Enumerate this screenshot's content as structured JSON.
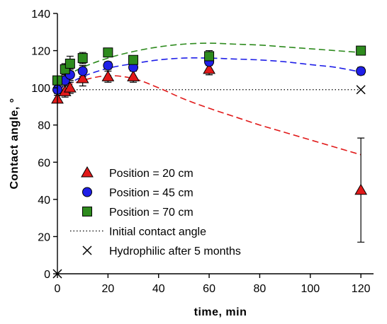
{
  "chart_data": {
    "type": "scatter",
    "xlabel": "time, min",
    "ylabel": "Contact angle, °",
    "xlim": [
      0,
      125
    ],
    "ylim": [
      0,
      140
    ],
    "x_ticks": [
      0,
      20,
      40,
      60,
      80,
      100,
      120
    ],
    "y_ticks": [
      0,
      20,
      40,
      60,
      80,
      100,
      120,
      140
    ],
    "grid": false,
    "legend_position": "bottom-left",
    "series": [
      {
        "name": "Position = 20 cm",
        "marker": "triangle",
        "color": "#e11919",
        "points": [
          {
            "x": 0,
            "y": 94,
            "err": 2
          },
          {
            "x": 3,
            "y": 98,
            "err": 3
          },
          {
            "x": 5,
            "y": 100,
            "err": 3
          },
          {
            "x": 10,
            "y": 105,
            "err": 4
          },
          {
            "x": 20,
            "y": 106,
            "err": 3
          },
          {
            "x": 30,
            "y": 106,
            "err": 3
          },
          {
            "x": 60,
            "y": 110,
            "err": 3
          },
          {
            "x": 120,
            "y": 45,
            "err": 28
          }
        ],
        "fit": {
          "color": "#e11919",
          "x": [
            0,
            10,
            20,
            30,
            40,
            50,
            60,
            70,
            80,
            90,
            100,
            110,
            120
          ],
          "y": [
            99,
            104,
            106.5,
            105,
            100,
            94,
            89,
            84.5,
            80,
            76,
            72,
            68,
            64
          ]
        }
      },
      {
        "name": "Position = 45 cm",
        "marker": "circle",
        "color": "#1f1fe8",
        "points": [
          {
            "x": 0,
            "y": 99,
            "err": 2
          },
          {
            "x": 3,
            "y": 104,
            "err": 3
          },
          {
            "x": 5,
            "y": 107,
            "err": 3
          },
          {
            "x": 10,
            "y": 109,
            "err": 3
          },
          {
            "x": 20,
            "y": 112,
            "err": 2
          },
          {
            "x": 30,
            "y": 111,
            "err": 2
          },
          {
            "x": 60,
            "y": 114,
            "err": 2
          },
          {
            "x": 120,
            "y": 109,
            "err": 2
          }
        ],
        "fit": {
          "color": "#1f1fe8",
          "x": [
            0,
            10,
            20,
            30,
            40,
            50,
            60,
            70,
            80,
            90,
            100,
            110,
            120
          ],
          "y": [
            99,
            106,
            110.5,
            113,
            115,
            116,
            116,
            115.5,
            115,
            114,
            112.5,
            111,
            108.5
          ]
        }
      },
      {
        "name": "Position = 70 cm",
        "marker": "square",
        "color": "#2e8b1e",
        "points": [
          {
            "x": 0,
            "y": 104,
            "err": 2
          },
          {
            "x": 3,
            "y": 110,
            "err": 3
          },
          {
            "x": 5,
            "y": 113,
            "err": 4
          },
          {
            "x": 10,
            "y": 116,
            "err": 3
          },
          {
            "x": 20,
            "y": 119,
            "err": 2
          },
          {
            "x": 30,
            "y": 115,
            "err": 2
          },
          {
            "x": 60,
            "y": 117,
            "err": 3
          },
          {
            "x": 120,
            "y": 120,
            "err": 2
          }
        ],
        "fit": {
          "color": "#2e8b1e",
          "x": [
            0,
            10,
            20,
            30,
            40,
            50,
            60,
            70,
            80,
            90,
            100,
            110,
            120
          ],
          "y": [
            104,
            111,
            116,
            119.5,
            122,
            123.5,
            124,
            123.5,
            123,
            122,
            121,
            120,
            119
          ]
        }
      },
      {
        "name": "Initial contact angle",
        "marker": "dotted-line",
        "color": "#000000",
        "y": 99
      },
      {
        "name": "Hydrophilic after 5 months",
        "marker": "x",
        "color": "#000000",
        "points": [
          {
            "x": 0,
            "y": 0
          },
          {
            "x": 120,
            "y": 99
          }
        ]
      }
    ]
  }
}
